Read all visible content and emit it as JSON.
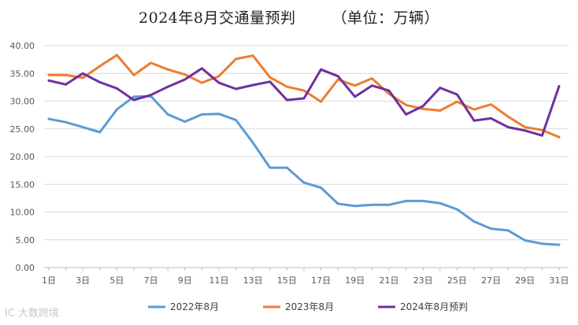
{
  "chart_data": {
    "type": "line",
    "title": "2024年8月交通量预判",
    "unit_label": "（单位：万辆）",
    "x": [
      1,
      2,
      3,
      4,
      5,
      6,
      7,
      8,
      9,
      10,
      11,
      12,
      13,
      14,
      15,
      16,
      17,
      18,
      19,
      20,
      21,
      22,
      23,
      24,
      25,
      26,
      27,
      28,
      29,
      30,
      31
    ],
    "x_tick_labels": [
      "1日",
      "3日",
      "5日",
      "7日",
      "9日",
      "11日",
      "13日",
      "15日",
      "17日",
      "19日",
      "21日",
      "23日",
      "25日",
      "27日",
      "29日",
      "31日"
    ],
    "y_tick_labels": [
      "0.00",
      "5.00",
      "10.00",
      "15.00",
      "20.00",
      "25.00",
      "30.00",
      "35.00",
      "40.00"
    ],
    "ylim": [
      0,
      40
    ],
    "grid": true,
    "legend_position": "bottom",
    "series": [
      {
        "name": "2022年8月",
        "color": "#5b9bd5",
        "values": [
          26.8,
          26.2,
          25.3,
          24.4,
          28.5,
          30.8,
          30.9,
          27.6,
          26.3,
          27.6,
          27.7,
          26.6,
          22.5,
          18.0,
          18.0,
          15.3,
          14.4,
          11.5,
          11.1,
          11.3,
          11.3,
          12.0,
          12.0,
          11.6,
          10.5,
          8.3,
          7.0,
          6.7,
          4.9,
          4.3,
          4.1
        ]
      },
      {
        "name": "2023年8月",
        "color": "#ed7d31",
        "values": [
          34.7,
          34.7,
          34.2,
          36.3,
          38.3,
          34.7,
          36.9,
          35.7,
          34.8,
          33.3,
          34.5,
          37.6,
          38.2,
          34.3,
          32.6,
          31.9,
          29.9,
          33.9,
          32.8,
          34.1,
          31.3,
          29.3,
          28.6,
          28.3,
          29.9,
          28.5,
          29.4,
          27.2,
          25.3,
          24.8,
          23.5
        ]
      },
      {
        "name": "2024年8月预判",
        "color": "#7030a0",
        "values": [
          33.7,
          33.0,
          35.0,
          33.4,
          32.3,
          30.2,
          31.1,
          32.6,
          33.9,
          35.9,
          33.3,
          32.2,
          32.9,
          33.5,
          30.2,
          30.5,
          35.7,
          34.5,
          30.8,
          32.8,
          31.9,
          27.6,
          29.1,
          32.4,
          31.2,
          26.5,
          26.9,
          25.3,
          24.7,
          23.8,
          32.7
        ]
      }
    ]
  },
  "watermark": "IC 大数跨境"
}
